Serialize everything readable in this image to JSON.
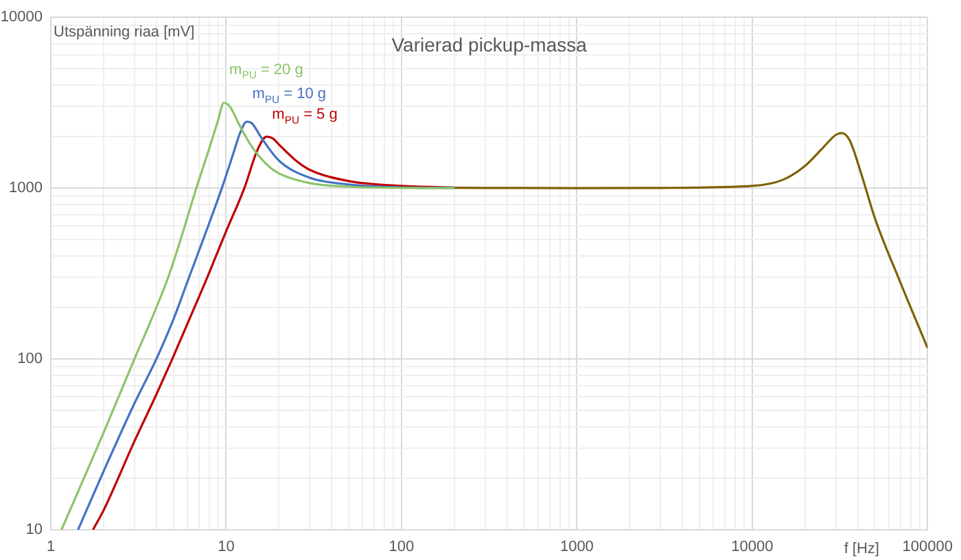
{
  "chart_data": {
    "type": "line",
    "title": "Varierad pickup-massa",
    "xlabel": "f [Hz]",
    "ylabel": "Utspänning riaa [mV]",
    "log": "xy",
    "grid": true,
    "legend": false,
    "marker": "none",
    "line_style": "solid",
    "xlim": [
      1,
      100000
    ],
    "ylim": [
      10,
      10000
    ],
    "xticks": [
      1,
      {
        "value": 2,
        "label": null
      },
      {
        "value": 3,
        "label": null
      },
      {
        "value": 4,
        "label": null
      },
      {
        "value": 5,
        "label": null
      },
      {
        "value": 6,
        "label": null
      },
      {
        "value": 7,
        "label": null
      },
      {
        "value": 8,
        "label": null
      },
      {
        "value": 9,
        "label": null
      },
      10,
      {
        "value": 20,
        "label": null
      },
      {
        "value": 30,
        "label": null
      },
      {
        "value": 40,
        "label": null
      },
      {
        "value": 50,
        "label": null
      },
      {
        "value": 60,
        "label": null
      },
      {
        "value": 70,
        "label": null
      },
      {
        "value": 80,
        "label": null
      },
      {
        "value": 90,
        "label": null
      },
      100,
      {
        "value": 200,
        "label": null
      },
      {
        "value": 300,
        "label": null
      },
      {
        "value": 400,
        "label": null
      },
      {
        "value": 500,
        "label": null
      },
      {
        "value": 600,
        "label": null
      },
      {
        "value": 700,
        "label": null
      },
      {
        "value": 800,
        "label": null
      },
      {
        "value": 900,
        "label": null
      },
      1000,
      {
        "value": 2000,
        "label": null
      },
      {
        "value": 3000,
        "label": null
      },
      {
        "value": 4000,
        "label": null
      },
      {
        "value": 5000,
        "label": null
      },
      {
        "value": 6000,
        "label": null
      },
      {
        "value": 7000,
        "label": null
      },
      {
        "value": 8000,
        "label": null
      },
      {
        "value": 9000,
        "label": null
      },
      10000,
      {
        "value": 20000,
        "label": null
      },
      {
        "value": 30000,
        "label": null
      },
      {
        "value": 40000,
        "label": null
      },
      {
        "value": 50000,
        "label": null
      },
      {
        "value": 60000,
        "label": null
      },
      {
        "value": 70000,
        "label": null
      },
      {
        "value": 80000,
        "label": null
      },
      {
        "value": 90000,
        "label": null
      },
      100000
    ],
    "yticks": [
      10,
      {
        "value": 20,
        "label": null
      },
      {
        "value": 30,
        "label": null
      },
      {
        "value": 40,
        "label": null
      },
      {
        "value": 50,
        "label": null
      },
      {
        "value": 60,
        "label": null
      },
      {
        "value": 70,
        "label": null
      },
      {
        "value": 80,
        "label": null
      },
      {
        "value": 90,
        "label": null
      },
      100,
      {
        "value": 200,
        "label": null
      },
      {
        "value": 300,
        "label": null
      },
      {
        "value": 400,
        "label": null
      },
      {
        "value": 500,
        "label": null
      },
      {
        "value": 600,
        "label": null
      },
      {
        "value": 700,
        "label": null
      },
      {
        "value": 800,
        "label": null
      },
      {
        "value": 900,
        "label": null
      },
      1000,
      {
        "value": 2000,
        "label": null
      },
      {
        "value": 3000,
        "label": null
      },
      {
        "value": 4000,
        "label": null
      },
      {
        "value": 5000,
        "label": null
      },
      {
        "value": 6000,
        "label": null
      },
      {
        "value": 7000,
        "label": null
      },
      {
        "value": 8000,
        "label": null
      },
      {
        "value": 9000,
        "label": null
      },
      10000
    ],
    "series": [
      {
        "name": "m$_{PU}$ = 20 g",
        "color": "#8bc56a",
        "x": [
          1.15,
          2,
          3,
          4,
          4.67,
          5.5,
          6.76,
          8,
          9,
          9.7,
          10.5,
          12,
          14,
          17,
          20,
          30,
          50,
          100,
          200
        ],
        "values": [
          10,
          37,
          100,
          200,
          300,
          500,
          1000,
          1700,
          2500,
          3160,
          3000,
          2300,
          1750,
          1380,
          1220,
          1070,
          1020,
          1003,
          1001
        ]
      },
      {
        "name": "m$_{PU}$ = 10 g",
        "color": "#4472c4",
        "x": [
          1.43,
          2,
          3,
          4,
          5,
          6.14,
          7.5,
          9.45,
          11,
          12,
          13.1,
          14,
          16,
          20,
          30,
          50,
          100,
          200
        ],
        "values": [
          10,
          22,
          55,
          100,
          170,
          300,
          520,
          1000,
          1600,
          2100,
          2450,
          2400,
          1950,
          1450,
          1150,
          1050,
          1010,
          1004
        ]
      },
      {
        "name": "m$_{PU}$ = 5 g",
        "color": "#c00000",
        "x": [
          1.74,
          2,
          3,
          4,
          4.93,
          6,
          7.8,
          10,
          12.7,
          15,
          17,
          18.5,
          20,
          25,
          30,
          50,
          100,
          200
        ],
        "values": [
          10,
          13,
          33,
          62,
          100,
          160,
          300,
          560,
          1000,
          1650,
          2000,
          1950,
          1800,
          1450,
          1280,
          1100,
          1030,
          1008
        ]
      },
      {
        "color": "#7f6000",
        "x": [
          200,
          300,
          1000,
          3000,
          10000,
          15000,
          20000,
          25000,
          30000,
          32400,
          36000,
          42000,
          50000,
          70000,
          100000
        ],
        "values": [
          1005,
          1003,
          1000,
          1003,
          1030,
          1120,
          1350,
          1700,
          2050,
          2100,
          1900,
          1200,
          670,
          280,
          116
        ]
      }
    ]
  }
}
